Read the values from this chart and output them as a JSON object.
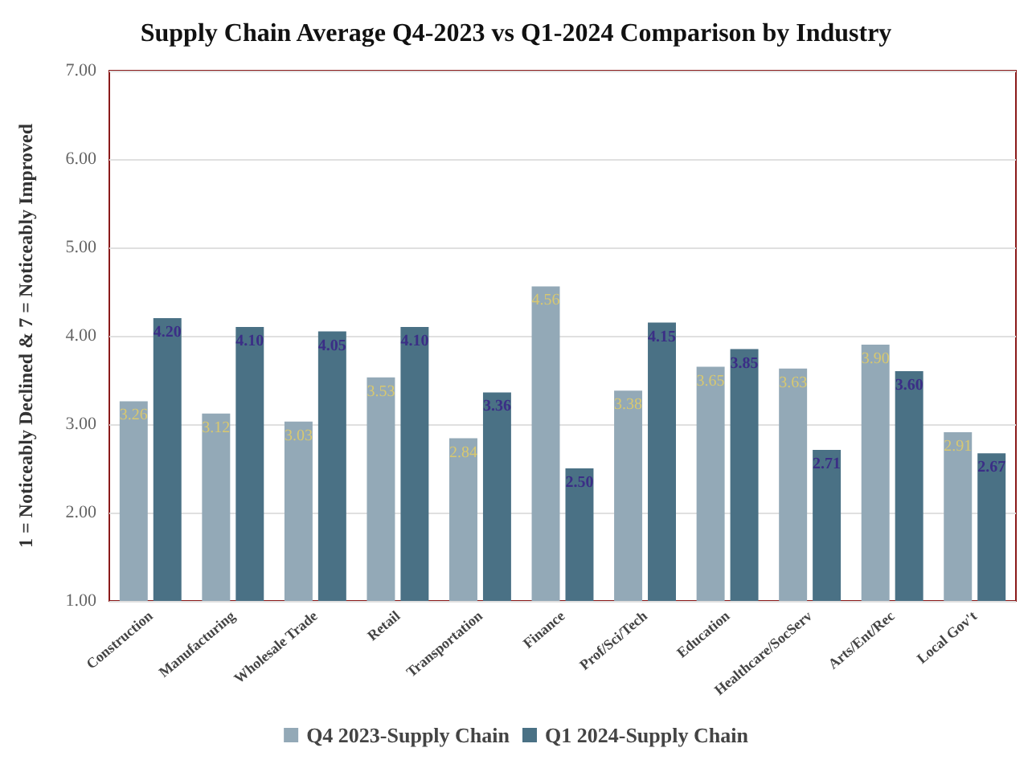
{
  "chart_data": {
    "type": "bar",
    "title": "Supply Chain Average Q4-2023 vs Q1-2024 Comparison by Industry",
    "ylabel": "1 = Noticeably Declined & 7 = Noticeably Improved",
    "categories": [
      "Construction",
      "Manufacturing",
      "Wholesale Trade",
      "Retail",
      "Transportation",
      "Finance",
      "Prof/Sci/Tech",
      "Education",
      "Healthcare/SocServ",
      "Arts/Ent/Rec",
      "Local Gov't"
    ],
    "series": [
      {
        "name": "Q4 2023-Supply Chain",
        "color": "#93a9b7",
        "values": [
          3.26,
          3.12,
          3.03,
          3.53,
          2.84,
          4.56,
          3.38,
          3.65,
          3.63,
          3.9,
          2.91
        ]
      },
      {
        "name": "Q1 2024-Supply Chain",
        "color": "#4a7185",
        "values": [
          4.2,
          4.1,
          4.05,
          4.1,
          3.36,
          2.5,
          4.15,
          3.85,
          2.71,
          3.6,
          2.67
        ]
      }
    ],
    "value_labels": [
      [
        "3.26",
        "3.12",
        "3.03",
        "3.53",
        "2.84",
        "4.56",
        "3.38",
        "3.65",
        "3.63",
        "3.90",
        "2.91"
      ],
      [
        "4.20",
        "4.10",
        "4.05",
        "4.10",
        "3.36",
        "2.50",
        "4.15",
        "3.85",
        "2.71",
        "3.60",
        "2.67"
      ]
    ],
    "ylim": [
      1,
      7
    ],
    "yticks": [
      {
        "value": 1,
        "label": "1.00"
      },
      {
        "value": 2,
        "label": "2.00"
      },
      {
        "value": 3,
        "label": "3.00"
      },
      {
        "value": 4,
        "label": "4.00"
      },
      {
        "value": 5,
        "label": "5.00"
      },
      {
        "value": 6,
        "label": "6.00"
      },
      {
        "value": 7,
        "label": "7.00"
      }
    ],
    "grid": "y",
    "legend": "bottom"
  }
}
